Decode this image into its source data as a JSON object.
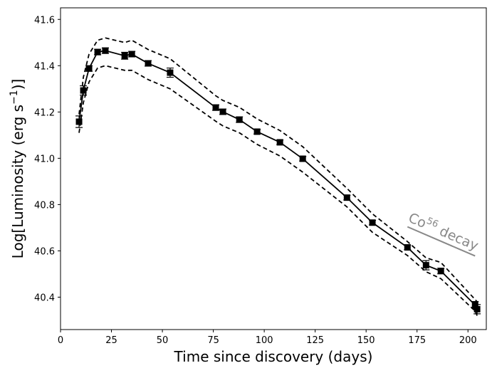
{
  "chart_data": {
    "type": "line",
    "xlabel": "Time since discovery (days)",
    "ylabel": {
      "before": "Log[Luminosity (erg s",
      "sup": "−1",
      "after": ")]"
    },
    "xlim": [
      0,
      209
    ],
    "xticks": [
      0,
      25,
      50,
      75,
      100,
      125,
      150,
      175,
      200
    ],
    "ylim": [
      40.26,
      41.65
    ],
    "yticks": [
      40.4,
      40.6,
      40.8,
      {
        "value": 41,
        "label": "41.0"
      },
      41.2,
      41.4,
      41.6
    ],
    "x": [
      9.1,
      11.2,
      14.0,
      18.2,
      22.0,
      31.5,
      35.0,
      43.0,
      53.8,
      76.2,
      79.7,
      87.8,
      96.5,
      107.7,
      118.9,
      140.6,
      153.1,
      170.3,
      179.4,
      186.7,
      203.5,
      204.5
    ],
    "series": [
      {
        "name": "Luminosity",
        "color": "#000000",
        "style": "solid",
        "markers": true,
        "values": [
          41.158,
          41.293,
          41.388,
          41.459,
          41.465,
          41.443,
          41.45,
          41.41,
          41.37,
          41.219,
          41.201,
          41.167,
          41.115,
          41.069,
          40.998,
          40.83,
          40.722,
          40.615,
          40.538,
          40.513,
          40.366,
          40.348
        ],
        "errors": [
          0.025,
          0.02,
          0.012,
          0.012,
          0.012,
          0.015,
          0.012,
          0.012,
          0.02,
          0.012,
          0.012,
          0.012,
          0.01,
          0.01,
          0.01,
          0.01,
          0.01,
          0.01,
          0.02,
          0.012,
          0.015,
          0.02
        ]
      },
      {
        "name": "Upper",
        "color": "#000000",
        "style": "dashed",
        "markers": false,
        "values": [
          41.19,
          41.35,
          41.45,
          41.51,
          41.52,
          41.5,
          41.51,
          41.47,
          41.43,
          41.27,
          41.25,
          41.22,
          41.17,
          41.12,
          41.05,
          40.87,
          40.76,
          40.64,
          40.57,
          40.55,
          40.39,
          40.38
        ]
      },
      {
        "name": "Lower",
        "color": "#000000",
        "style": "dashed",
        "markers": false,
        "values": [
          41.11,
          41.24,
          41.33,
          41.39,
          41.4,
          41.38,
          41.38,
          41.34,
          41.3,
          41.16,
          41.14,
          41.11,
          41.06,
          41.01,
          40.94,
          40.79,
          40.68,
          40.58,
          40.51,
          40.48,
          40.34,
          40.32
        ]
      }
    ],
    "annotation": {
      "text": "Co",
      "sup": "56",
      "after": " decay",
      "color": "#888888",
      "x": [
        170.3,
        203.5
      ],
      "y": [
        40.704,
        40.578
      ]
    }
  }
}
